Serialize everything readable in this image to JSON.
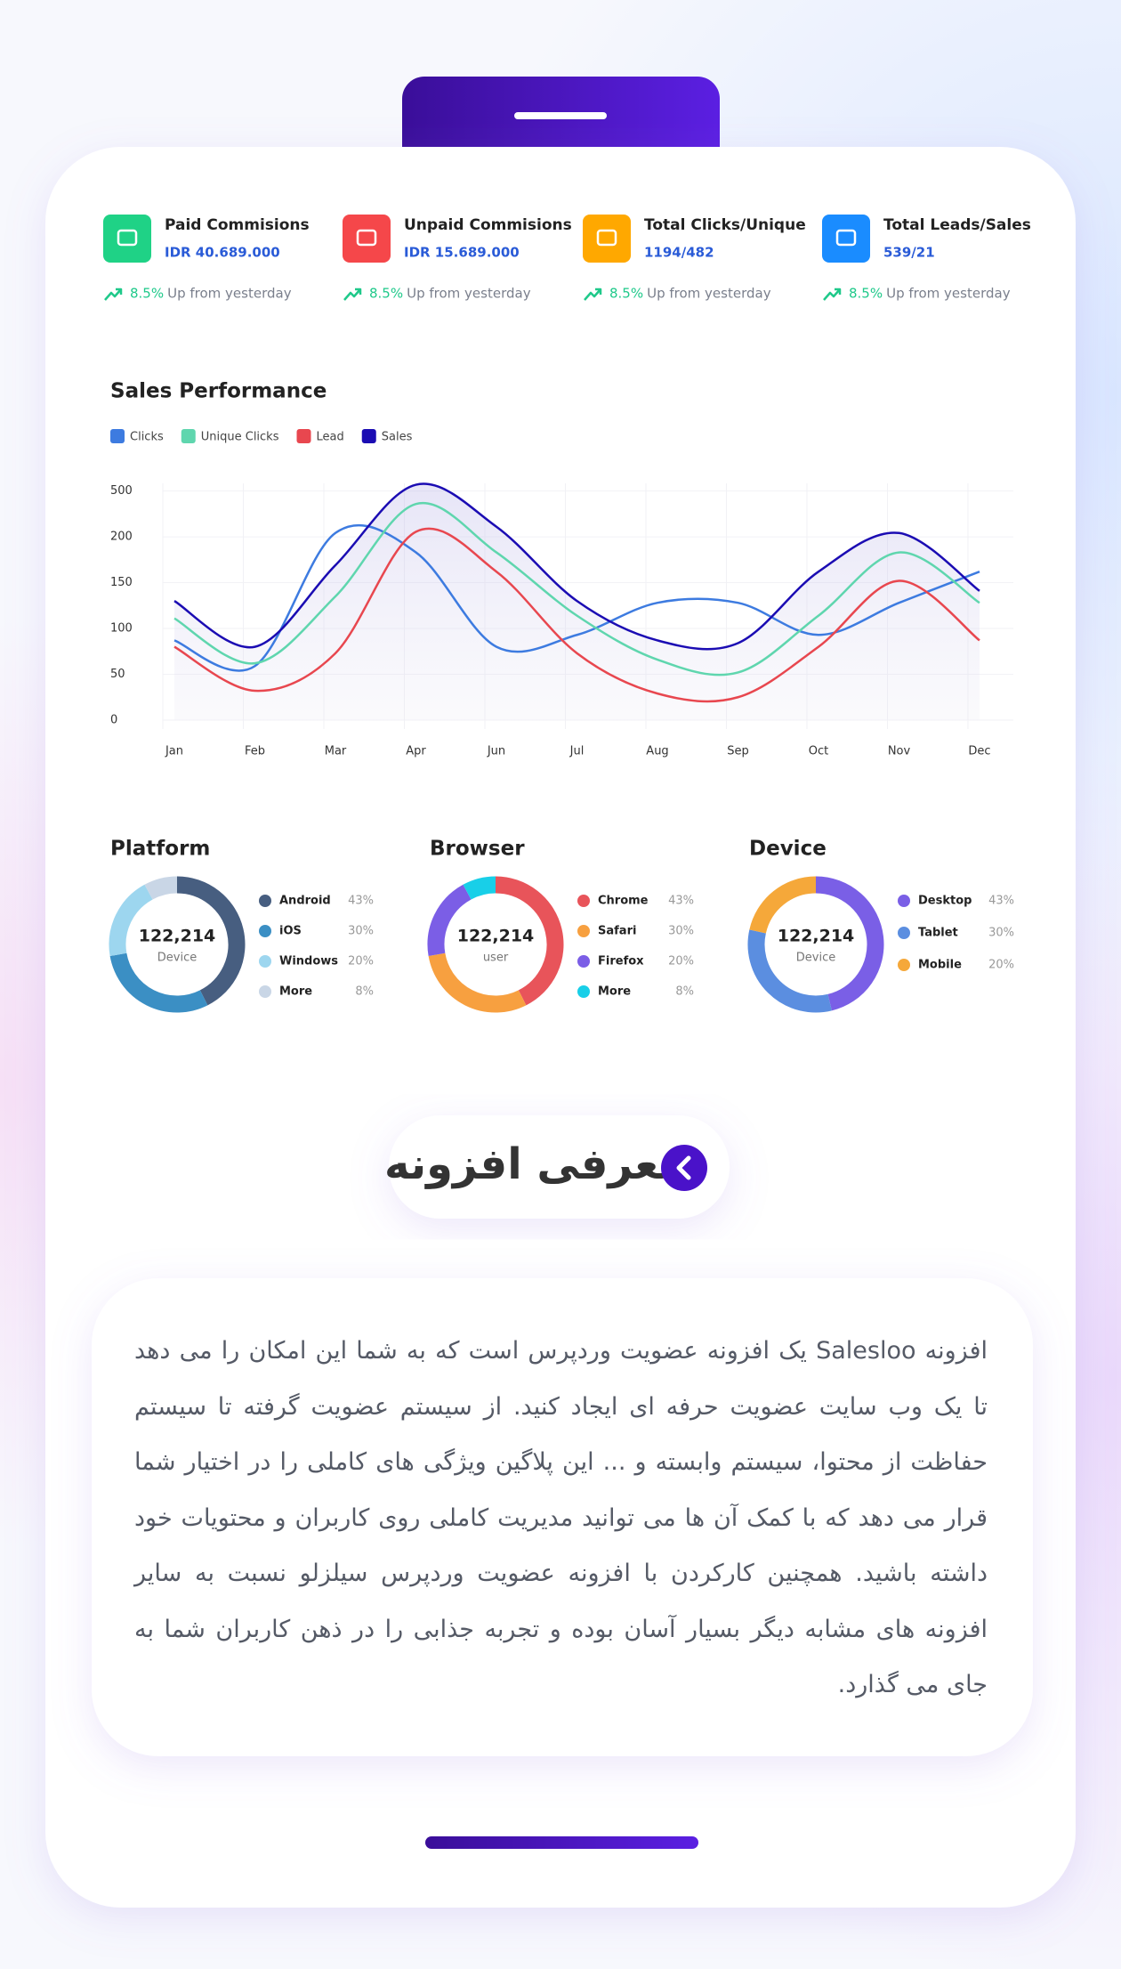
{
  "stats": [
    {
      "title": "Paid Commisions",
      "value": "IDR 40.689.000",
      "change": "8.5%",
      "change_text": "Up from yesterday"
    },
    {
      "title": "Unpaid Commisions",
      "value": "IDR 15.689.000",
      "change": "8.5%",
      "change_text": "Up from yesterday"
    },
    {
      "title": "Total Clicks/Unique",
      "value": "1194/482",
      "change": "8.5%",
      "change_text": "Up from yesterday"
    },
    {
      "title": "Total Leads/Sales",
      "value": "539/21",
      "change": "8.5%",
      "change_text": "Up from yesterday"
    }
  ],
  "chart_data": [
    {
      "type": "line",
      "title": "Sales Performance",
      "categories": [
        "Jan",
        "Feb",
        "Mar",
        "Apr",
        "Jun",
        "Jul",
        "Aug",
        "Sep",
        "Oct",
        "Nov",
        "Dec"
      ],
      "series": [
        {
          "name": "Clicks",
          "color": "#3d7be0",
          "values": [
            87,
            59,
            225,
            183,
            80,
            93,
            128,
            128,
            93,
            128,
            162
          ]
        },
        {
          "name": "Unique Clicks",
          "color": "#5fd6ae",
          "values": [
            111,
            62,
            135,
            415,
            183,
            114,
            66,
            52,
            114,
            183,
            128
          ]
        },
        {
          "name": "Lead",
          "color": "#e8474f",
          "values": [
            80,
            32,
            73,
            233,
            162,
            73,
            29,
            25,
            80,
            152,
            87
          ]
        },
        {
          "name": "Sales",
          "color": "#1b0cb3",
          "values": [
            130,
            80,
            169,
            541,
            266,
            130,
            87,
            84,
            162,
            225,
            141
          ]
        }
      ],
      "ylim": [
        0,
        550
      ],
      "yticks": [
        0,
        50,
        100,
        150,
        200,
        500
      ],
      "grid": true
    },
    {
      "type": "donut",
      "title": "Platform",
      "center_value": "122,214",
      "center_label": "Device",
      "categories": [
        "Android",
        "iOS",
        "Windows",
        "More"
      ],
      "values": [
        43,
        30,
        20,
        8
      ],
      "value_labels": [
        "43%",
        "30%",
        "20%",
        "8%"
      ],
      "colors": [
        "#475e80",
        "#3b8fc4",
        "#9dd6ef",
        "#c9d6e6"
      ]
    },
    {
      "type": "donut",
      "title": "Browser",
      "center_value": "122,214",
      "center_label": "user",
      "categories": [
        "Chrome",
        "Safari",
        "Firefox",
        "More"
      ],
      "values": [
        43,
        30,
        20,
        8
      ],
      "value_labels": [
        "43%",
        "30%",
        "20%",
        "8%"
      ],
      "colors": [
        "#e8545a",
        "#f7a040",
        "#7b5ee6",
        "#18cfe8"
      ]
    },
    {
      "type": "donut",
      "title": "Device",
      "center_value": "122,214",
      "center_label": "Device",
      "categories": [
        "Desktop",
        "Tablet",
        "Mobile"
      ],
      "values": [
        43,
        30,
        20
      ],
      "value_labels": [
        "43%",
        "30%",
        "20%"
      ],
      "colors": [
        "#7a5fe6",
        "#5b8ee0",
        "#f5a83a"
      ]
    }
  ],
  "intro": {
    "heading": "معرفی افزونه",
    "paragraph": "افزونه Salesloo یک افزونه عضویت وردپرس است که به شما این امکان را می دهد تا یک وب سایت عضویت حرفه ای ایجاد کنید. از سیستم عضویت گرفته تا سیستم حفاظت از محتوا، سیستم وابسته و ... این پلاگین ویژگی های کاملی را در اختیار شما قرار می دهد که با کمک آن ها می توانید مدیریت کاملی روی کاربران و محتویات خود داشته باشید. همچنین کارکردن با افزونه عضویت وردپرس سیلزلو نسبت به سایر افزونه های مشابه دیگر بسیار آسان بوده و تجربه جذابی را در ذهن کاربران شما به جای می گذارد."
  }
}
